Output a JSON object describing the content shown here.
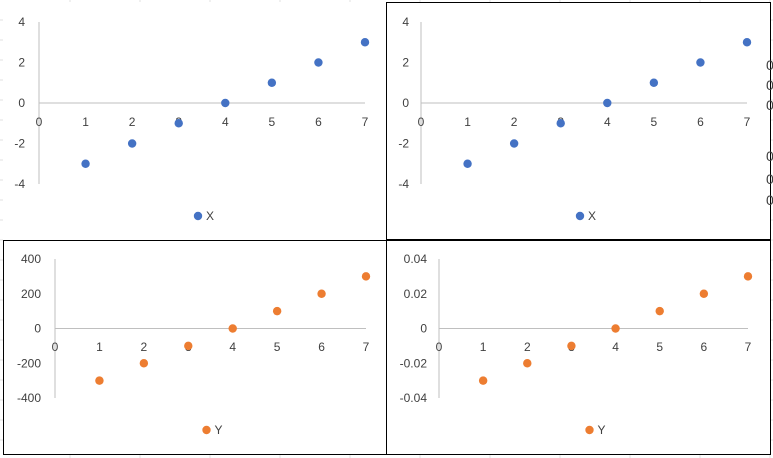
{
  "colors": {
    "blue": "#4472C4",
    "orange": "#ED7D31",
    "axis": "#BFBFBF",
    "text": "#404040",
    "cell_grid": "#E1E1E1"
  },
  "edge_glyphs": [
    "0",
    "0",
    "0",
    "0",
    "0",
    "0"
  ],
  "chart_data": [
    {
      "type": "scatter",
      "title": "",
      "xlabel": "",
      "ylabel": "",
      "xlim": [
        0,
        7
      ],
      "ylim": [
        -4,
        4
      ],
      "x_ticks": [
        "0",
        "1",
        "2",
        "3",
        "4",
        "5",
        "6",
        "7"
      ],
      "y_ticks": [
        "4",
        "2",
        "0",
        "-2",
        "-4"
      ],
      "y_tick_values": [
        4,
        2,
        0,
        -2,
        -4
      ],
      "legend": "bottom",
      "grid": false,
      "series": [
        {
          "name": "X",
          "color": "#4472C4",
          "x": [
            1,
            2,
            3,
            4,
            5,
            6,
            7
          ],
          "y": [
            -3,
            -2,
            -1,
            0,
            1,
            2,
            3
          ]
        }
      ]
    },
    {
      "type": "scatter",
      "title": "",
      "xlabel": "",
      "ylabel": "",
      "xlim": [
        0,
        7
      ],
      "ylim": [
        -4,
        4
      ],
      "x_ticks": [
        "0",
        "1",
        "2",
        "3",
        "4",
        "5",
        "6",
        "7"
      ],
      "y_ticks": [
        "4",
        "2",
        "0",
        "-2",
        "-4"
      ],
      "y_tick_values": [
        4,
        2,
        0,
        -2,
        -4
      ],
      "legend": "bottom",
      "grid": false,
      "series": [
        {
          "name": "X",
          "color": "#4472C4",
          "x": [
            1,
            2,
            3,
            4,
            5,
            6,
            7
          ],
          "y": [
            -3,
            -2,
            -1,
            0,
            1,
            2,
            3
          ]
        }
      ]
    },
    {
      "type": "scatter",
      "title": "",
      "xlabel": "",
      "ylabel": "",
      "xlim": [
        0,
        7
      ],
      "ylim": [
        -400,
        400
      ],
      "x_ticks": [
        "0",
        "1",
        "2",
        "3",
        "4",
        "5",
        "6",
        "7"
      ],
      "y_ticks": [
        "400",
        "200",
        "0",
        "-200",
        "-400"
      ],
      "y_tick_values": [
        400,
        200,
        0,
        -200,
        -400
      ],
      "legend": "bottom",
      "grid": false,
      "series": [
        {
          "name": "Y",
          "color": "#ED7D31",
          "x": [
            1,
            2,
            3,
            4,
            5,
            6,
            7
          ],
          "y": [
            -300,
            -200,
            -100,
            0,
            100,
            200,
            300
          ]
        }
      ]
    },
    {
      "type": "scatter",
      "title": "",
      "xlabel": "",
      "ylabel": "",
      "xlim": [
        0,
        7
      ],
      "ylim": [
        -0.04,
        0.04
      ],
      "x_ticks": [
        "0",
        "1",
        "2",
        "3",
        "4",
        "5",
        "6",
        "7"
      ],
      "y_ticks": [
        "0.04",
        "0.02",
        "0",
        "-0.02",
        "-0.04"
      ],
      "y_tick_values": [
        0.04,
        0.02,
        0,
        -0.02,
        -0.04
      ],
      "legend": "bottom",
      "grid": false,
      "series": [
        {
          "name": "Y",
          "color": "#ED7D31",
          "x": [
            1,
            2,
            3,
            4,
            5,
            6,
            7
          ],
          "y": [
            -0.03,
            -0.02,
            -0.01,
            0,
            0.01,
            0.02,
            0.03
          ]
        }
      ]
    }
  ]
}
